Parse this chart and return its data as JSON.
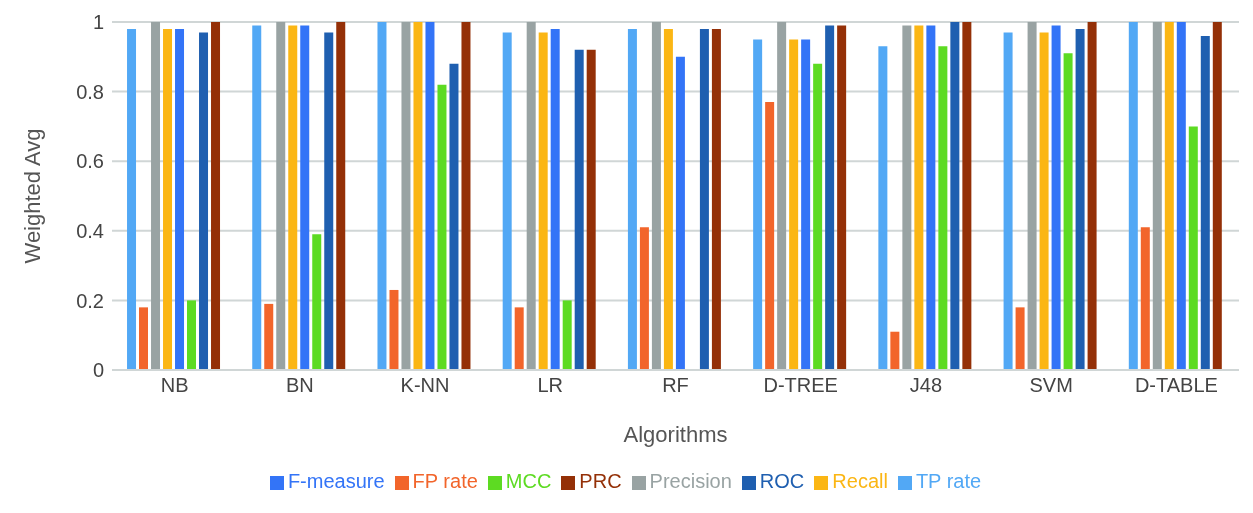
{
  "chart_data": {
    "type": "bar",
    "xlabel": "Algorithms",
    "ylabel": "Weighted Avg",
    "categories": [
      "NB",
      "BN",
      "K-NN",
      "LR",
      "RF",
      "D-TREE",
      "J48",
      "SVM",
      "D-TABLE"
    ],
    "ylim": [
      0,
      1
    ],
    "yticks": [
      0,
      0.2,
      0.4,
      0.6,
      0.8,
      1
    ],
    "grid": "y",
    "legend": "bottom",
    "series": [
      {
        "name": "TP rate",
        "color": "#52a8f5",
        "values": [
          0.98,
          0.99,
          1,
          0.97,
          0.98,
          0.95,
          0.93,
          0.97,
          1
        ]
      },
      {
        "name": "FP rate",
        "color": "#f2652b",
        "values": [
          0.18,
          0.19,
          0.23,
          0.18,
          0.41,
          0.77,
          0.11,
          0.18,
          0.41
        ]
      },
      {
        "name": "Precision",
        "color": "#99a3a3",
        "values": [
          1,
          1,
          1,
          1,
          1,
          1,
          0.99,
          1,
          1
        ]
      },
      {
        "name": "Recall",
        "color": "#fbb614",
        "values": [
          0.98,
          0.99,
          1,
          0.97,
          0.98,
          0.95,
          0.99,
          0.97,
          1
        ]
      },
      {
        "name": "F-measure",
        "color": "#3374f7",
        "values": [
          0.98,
          0.99,
          1,
          0.98,
          0.9,
          0.95,
          0.99,
          0.99,
          1
        ]
      },
      {
        "name": "MCC",
        "color": "#5ddb22",
        "values": [
          0.2,
          0.39,
          0.82,
          0.2,
          null,
          0.88,
          0.93,
          0.91,
          0.7
        ]
      },
      {
        "name": "ROC",
        "color": "#1f5fb0",
        "values": [
          0.97,
          0.97,
          0.88,
          0.92,
          0.98,
          0.99,
          1,
          0.98,
          0.96
        ]
      },
      {
        "name": "PRC",
        "color": "#943007",
        "values": [
          1,
          1,
          1,
          0.92,
          0.98,
          0.99,
          1,
          1,
          1
        ]
      }
    ]
  }
}
